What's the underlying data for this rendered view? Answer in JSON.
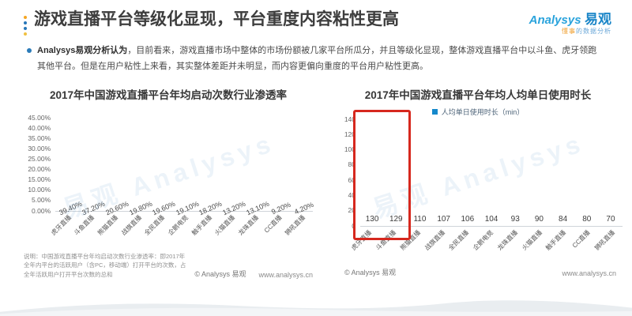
{
  "header": {
    "title": "游戏直播平台等级化显现，平台重度内容粘性更高",
    "logo": {
      "brand_en": "Analysys",
      "brand_cn": "易观",
      "tagline_highlight": "懂事",
      "tagline_rest": "的数据分析"
    }
  },
  "intro": {
    "lead": "Analysys易观分析认为",
    "body": "，目前看来，游戏直播市场中整体的市场份额被几家平台所瓜分，并且等级化显现，整体游戏直播平台中以斗鱼、虎牙领跑其他平台。但是在用户粘性上来看，其实整体差距并未明显，而内容更偏向重度的平台用户粘性更高。"
  },
  "chart_data": [
    {
      "type": "bar",
      "title": "2017年中国游戏直播平台年均启动次数行业渗透率",
      "categories": [
        "虎牙直播",
        "斗鱼直播",
        "熊猫直播",
        "战旗直播",
        "全民直播",
        "企鹅电竞",
        "触手直播",
        "火猫直播",
        "龙珠直播",
        "CC直播",
        "狮吼直播"
      ],
      "values": [
        39.4,
        37.2,
        20.6,
        19.8,
        19.6,
        19.1,
        18.2,
        13.2,
        13.1,
        9.2,
        4.2
      ],
      "value_labels": [
        "39.40%",
        "37.20%",
        "20.60%",
        "19.80%",
        "19.60%",
        "19.10%",
        "18.20%",
        "13.20%",
        "13.10%",
        "9.20%",
        "4.20%"
      ],
      "ylim": [
        0,
        45
      ],
      "yticks": [
        "45.00%",
        "40.00%",
        "35.00%",
        "30.00%",
        "25.00%",
        "20.00%",
        "15.00%",
        "10.00%",
        "5.00%",
        "0.00%"
      ],
      "grid": false,
      "legend": null,
      "xlabel": "",
      "ylabel": ""
    },
    {
      "type": "bar",
      "title": "2017年中国游戏直播平台年均人均单日使用时长",
      "legend": "人均单日使用时长（min）",
      "categories": [
        "虎牙直播",
        "斗鱼直播",
        "熊猫直播",
        "战旗直播",
        "全民直播",
        "企鹅电竞",
        "龙珠直播",
        "火猫直播",
        "触手直播",
        "CC直播",
        "狮吼直播"
      ],
      "values": [
        130,
        129,
        110,
        107,
        106,
        104,
        93,
        90,
        84,
        80,
        70
      ],
      "value_labels": [
        "130",
        "129",
        "110",
        "107",
        "106",
        "104",
        "93",
        "90",
        "84",
        "80",
        "70"
      ],
      "ylim": [
        0,
        140
      ],
      "yticks": [
        "140",
        "120",
        "100",
        "80",
        "60",
        "40",
        "20",
        "0"
      ],
      "grid": false,
      "highlight_first_n": 2,
      "xlabel": "",
      "ylabel": ""
    }
  ],
  "footnote": "说明：中国游戏直播平台年均启动次数行业渗透率：即2017年全年内平台的活跃用户（含PC，移动端）打开平台的次数，占全年活跃用户打开平台次数的总和",
  "footer": {
    "copyright": "© Analysys 易观",
    "site": "www.analysys.cn"
  },
  "watermark": "易观 Analysys",
  "colors": {
    "bar": "#1588cb",
    "accent_blue": "#2776b8",
    "accent_orange": "#f5a623",
    "highlight_box": "#d6281e"
  }
}
